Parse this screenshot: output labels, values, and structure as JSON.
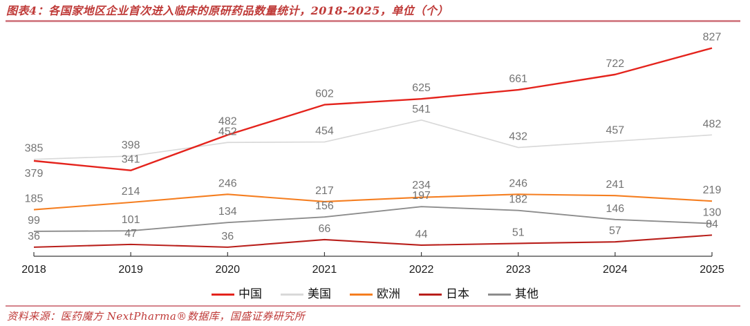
{
  "page": {
    "title": "图表4：各国家地区企业首次进入临床的原研药品数量统计，2018-2025，单位（个）",
    "source": "资料来源：医药魔方 NextPharma®数据库，国盛证券研究所"
  },
  "colors": {
    "title_text": "#bf3a38",
    "rule": "#d4828a",
    "axis": "#3a3a3a",
    "data_label": "#737373",
    "year_label": "#1a1a1a"
  },
  "chart_data": {
    "type": "line",
    "title": "各国家地区企业首次进入临床的原研药品数量统计，2018-2025，单位（个）",
    "categories": [
      "2018",
      "2019",
      "2020",
      "2021",
      "2022",
      "2023",
      "2024",
      "2025"
    ],
    "series": [
      {
        "key": "china",
        "name": "中国",
        "color": "#e4231c",
        "width": 2.4,
        "values": [
          379,
          341,
          482,
          602,
          625,
          661,
          722,
          827
        ]
      },
      {
        "key": "usa",
        "name": "美国",
        "color": "#d9d9d9",
        "width": 1.7,
        "values": [
          385,
          398,
          452,
          454,
          541,
          432,
          457,
          482
        ]
      },
      {
        "key": "europe",
        "name": "欧洲",
        "color": "#f57e20",
        "width": 2.1,
        "values": [
          185,
          214,
          246,
          217,
          234,
          246,
          241,
          219
        ]
      },
      {
        "key": "japan",
        "name": "日本",
        "color": "#b91f1b",
        "width": 2.1,
        "values": [
          36,
          47,
          36,
          66,
          44,
          51,
          57,
          84
        ]
      },
      {
        "key": "others",
        "name": "其他",
        "color": "#8c8c8c",
        "width": 1.9,
        "values": [
          99,
          101,
          134,
          156,
          197,
          182,
          146,
          130
        ]
      }
    ],
    "xlabel": "",
    "ylabel": "",
    "ylim": [
      0,
      900
    ],
    "grid": false,
    "legend_position": "bottom",
    "data_labels": true
  }
}
